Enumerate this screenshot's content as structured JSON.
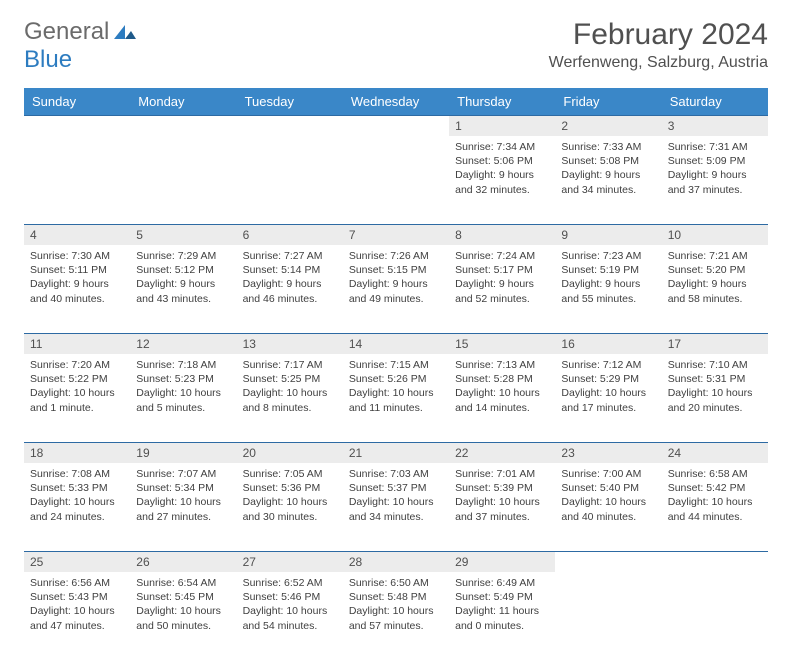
{
  "logo": {
    "word1": "General",
    "word2": "Blue"
  },
  "title": "February 2024",
  "location": "Werfenweng, Salzburg, Austria",
  "day_headers": [
    "Sunday",
    "Monday",
    "Tuesday",
    "Wednesday",
    "Thursday",
    "Friday",
    "Saturday"
  ],
  "colors": {
    "header_bg": "#3a87c8",
    "accent_border": "#2d6aa3",
    "daynum_bg": "#ececec",
    "text": "#505050"
  },
  "weeks": [
    [
      {
        "n": "",
        "sunrise": "",
        "sunset": "",
        "daylight1": "",
        "daylight2": ""
      },
      {
        "n": "",
        "sunrise": "",
        "sunset": "",
        "daylight1": "",
        "daylight2": ""
      },
      {
        "n": "",
        "sunrise": "",
        "sunset": "",
        "daylight1": "",
        "daylight2": ""
      },
      {
        "n": "",
        "sunrise": "",
        "sunset": "",
        "daylight1": "",
        "daylight2": ""
      },
      {
        "n": "1",
        "sunrise": "Sunrise: 7:34 AM",
        "sunset": "Sunset: 5:06 PM",
        "daylight1": "Daylight: 9 hours",
        "daylight2": "and 32 minutes."
      },
      {
        "n": "2",
        "sunrise": "Sunrise: 7:33 AM",
        "sunset": "Sunset: 5:08 PM",
        "daylight1": "Daylight: 9 hours",
        "daylight2": "and 34 minutes."
      },
      {
        "n": "3",
        "sunrise": "Sunrise: 7:31 AM",
        "sunset": "Sunset: 5:09 PM",
        "daylight1": "Daylight: 9 hours",
        "daylight2": "and 37 minutes."
      }
    ],
    [
      {
        "n": "4",
        "sunrise": "Sunrise: 7:30 AM",
        "sunset": "Sunset: 5:11 PM",
        "daylight1": "Daylight: 9 hours",
        "daylight2": "and 40 minutes."
      },
      {
        "n": "5",
        "sunrise": "Sunrise: 7:29 AM",
        "sunset": "Sunset: 5:12 PM",
        "daylight1": "Daylight: 9 hours",
        "daylight2": "and 43 minutes."
      },
      {
        "n": "6",
        "sunrise": "Sunrise: 7:27 AM",
        "sunset": "Sunset: 5:14 PM",
        "daylight1": "Daylight: 9 hours",
        "daylight2": "and 46 minutes."
      },
      {
        "n": "7",
        "sunrise": "Sunrise: 7:26 AM",
        "sunset": "Sunset: 5:15 PM",
        "daylight1": "Daylight: 9 hours",
        "daylight2": "and 49 minutes."
      },
      {
        "n": "8",
        "sunrise": "Sunrise: 7:24 AM",
        "sunset": "Sunset: 5:17 PM",
        "daylight1": "Daylight: 9 hours",
        "daylight2": "and 52 minutes."
      },
      {
        "n": "9",
        "sunrise": "Sunrise: 7:23 AM",
        "sunset": "Sunset: 5:19 PM",
        "daylight1": "Daylight: 9 hours",
        "daylight2": "and 55 minutes."
      },
      {
        "n": "10",
        "sunrise": "Sunrise: 7:21 AM",
        "sunset": "Sunset: 5:20 PM",
        "daylight1": "Daylight: 9 hours",
        "daylight2": "and 58 minutes."
      }
    ],
    [
      {
        "n": "11",
        "sunrise": "Sunrise: 7:20 AM",
        "sunset": "Sunset: 5:22 PM",
        "daylight1": "Daylight: 10 hours",
        "daylight2": "and 1 minute."
      },
      {
        "n": "12",
        "sunrise": "Sunrise: 7:18 AM",
        "sunset": "Sunset: 5:23 PM",
        "daylight1": "Daylight: 10 hours",
        "daylight2": "and 5 minutes."
      },
      {
        "n": "13",
        "sunrise": "Sunrise: 7:17 AM",
        "sunset": "Sunset: 5:25 PM",
        "daylight1": "Daylight: 10 hours",
        "daylight2": "and 8 minutes."
      },
      {
        "n": "14",
        "sunrise": "Sunrise: 7:15 AM",
        "sunset": "Sunset: 5:26 PM",
        "daylight1": "Daylight: 10 hours",
        "daylight2": "and 11 minutes."
      },
      {
        "n": "15",
        "sunrise": "Sunrise: 7:13 AM",
        "sunset": "Sunset: 5:28 PM",
        "daylight1": "Daylight: 10 hours",
        "daylight2": "and 14 minutes."
      },
      {
        "n": "16",
        "sunrise": "Sunrise: 7:12 AM",
        "sunset": "Sunset: 5:29 PM",
        "daylight1": "Daylight: 10 hours",
        "daylight2": "and 17 minutes."
      },
      {
        "n": "17",
        "sunrise": "Sunrise: 7:10 AM",
        "sunset": "Sunset: 5:31 PM",
        "daylight1": "Daylight: 10 hours",
        "daylight2": "and 20 minutes."
      }
    ],
    [
      {
        "n": "18",
        "sunrise": "Sunrise: 7:08 AM",
        "sunset": "Sunset: 5:33 PM",
        "daylight1": "Daylight: 10 hours",
        "daylight2": "and 24 minutes."
      },
      {
        "n": "19",
        "sunrise": "Sunrise: 7:07 AM",
        "sunset": "Sunset: 5:34 PM",
        "daylight1": "Daylight: 10 hours",
        "daylight2": "and 27 minutes."
      },
      {
        "n": "20",
        "sunrise": "Sunrise: 7:05 AM",
        "sunset": "Sunset: 5:36 PM",
        "daylight1": "Daylight: 10 hours",
        "daylight2": "and 30 minutes."
      },
      {
        "n": "21",
        "sunrise": "Sunrise: 7:03 AM",
        "sunset": "Sunset: 5:37 PM",
        "daylight1": "Daylight: 10 hours",
        "daylight2": "and 34 minutes."
      },
      {
        "n": "22",
        "sunrise": "Sunrise: 7:01 AM",
        "sunset": "Sunset: 5:39 PM",
        "daylight1": "Daylight: 10 hours",
        "daylight2": "and 37 minutes."
      },
      {
        "n": "23",
        "sunrise": "Sunrise: 7:00 AM",
        "sunset": "Sunset: 5:40 PM",
        "daylight1": "Daylight: 10 hours",
        "daylight2": "and 40 minutes."
      },
      {
        "n": "24",
        "sunrise": "Sunrise: 6:58 AM",
        "sunset": "Sunset: 5:42 PM",
        "daylight1": "Daylight: 10 hours",
        "daylight2": "and 44 minutes."
      }
    ],
    [
      {
        "n": "25",
        "sunrise": "Sunrise: 6:56 AM",
        "sunset": "Sunset: 5:43 PM",
        "daylight1": "Daylight: 10 hours",
        "daylight2": "and 47 minutes."
      },
      {
        "n": "26",
        "sunrise": "Sunrise: 6:54 AM",
        "sunset": "Sunset: 5:45 PM",
        "daylight1": "Daylight: 10 hours",
        "daylight2": "and 50 minutes."
      },
      {
        "n": "27",
        "sunrise": "Sunrise: 6:52 AM",
        "sunset": "Sunset: 5:46 PM",
        "daylight1": "Daylight: 10 hours",
        "daylight2": "and 54 minutes."
      },
      {
        "n": "28",
        "sunrise": "Sunrise: 6:50 AM",
        "sunset": "Sunset: 5:48 PM",
        "daylight1": "Daylight: 10 hours",
        "daylight2": "and 57 minutes."
      },
      {
        "n": "29",
        "sunrise": "Sunrise: 6:49 AM",
        "sunset": "Sunset: 5:49 PM",
        "daylight1": "Daylight: 11 hours",
        "daylight2": "and 0 minutes."
      },
      {
        "n": "",
        "sunrise": "",
        "sunset": "",
        "daylight1": "",
        "daylight2": ""
      },
      {
        "n": "",
        "sunrise": "",
        "sunset": "",
        "daylight1": "",
        "daylight2": ""
      }
    ]
  ]
}
